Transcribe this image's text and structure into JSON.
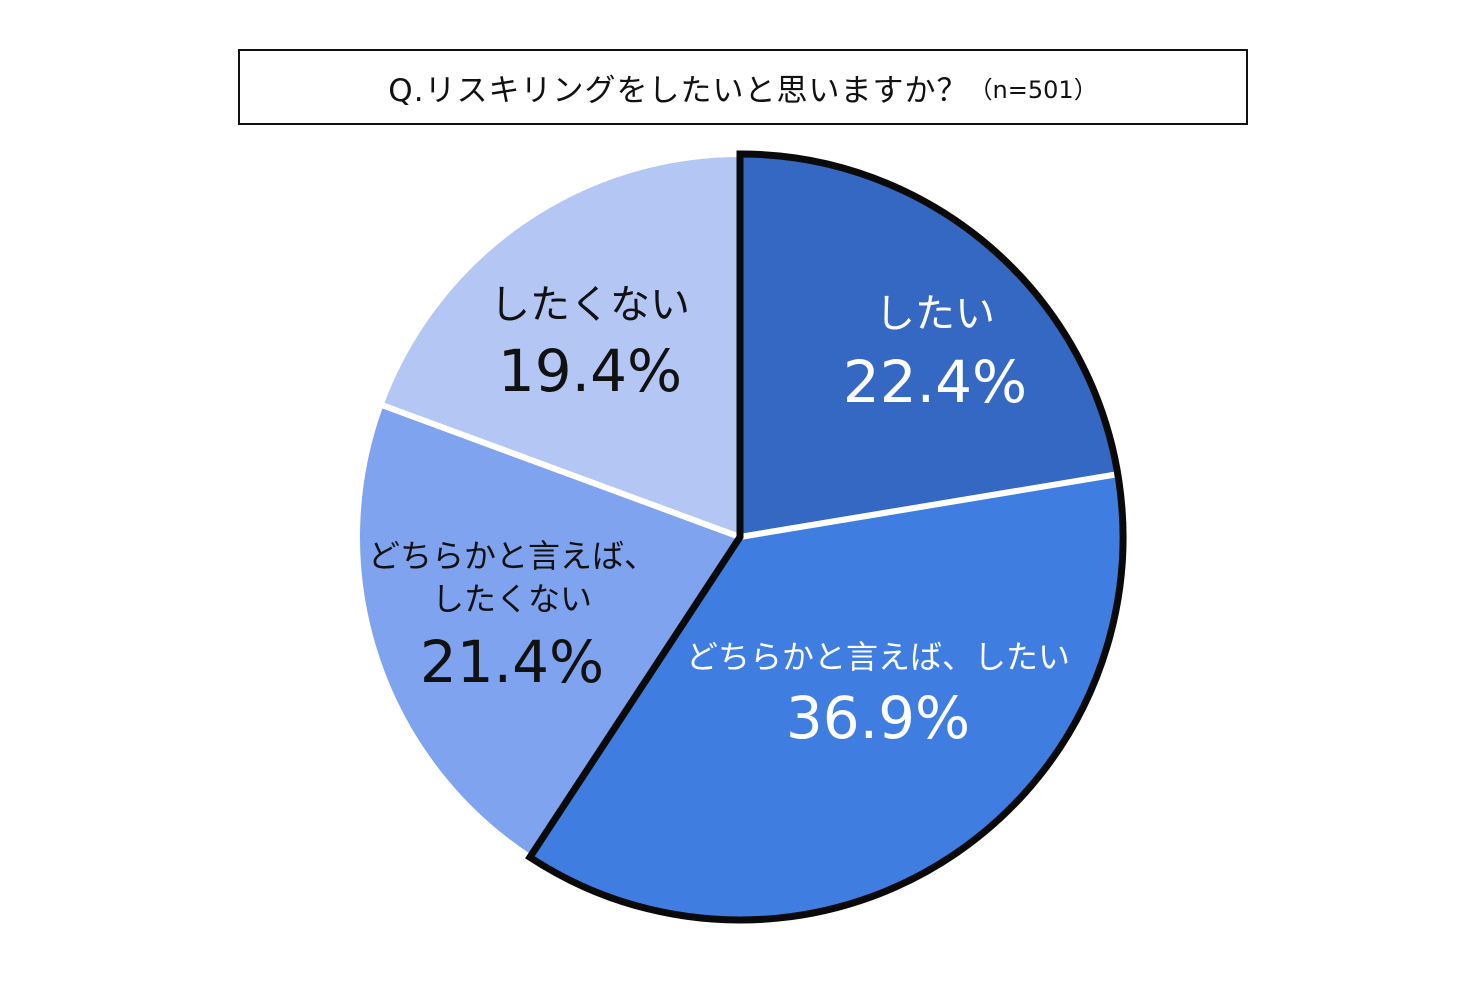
{
  "title": {
    "text": "Q.リスキリングをしたいと思いますか？",
    "n": "（n=501）"
  },
  "chart_data": {
    "type": "pie",
    "title": "Q.リスキリングをしたいと思いますか？（n=501）",
    "slices": [
      {
        "label_lines": [
          "したい"
        ],
        "value": 22.4,
        "value_label": "22.4%",
        "color": "#3468C2",
        "text_color": "#ffffff"
      },
      {
        "label_lines": [
          "どちらかと言えば、したい"
        ],
        "value": 36.9,
        "value_label": "36.9%",
        "color": "#3F7EE0",
        "text_color": "#ffffff"
      },
      {
        "label_lines": [
          "どちらかと言えば、",
          "したくない"
        ],
        "value": 21.4,
        "value_label": "21.4%",
        "color": "#7FA3EE",
        "text_color": "#111111"
      },
      {
        "label_lines": [
          "したくない"
        ],
        "value": 19.4,
        "value_label": "19.4%",
        "color": "#B4C6F4",
        "text_color": "#111111"
      }
    ],
    "highlighted_slices": [
      "したい",
      "どちらかと言えば、したい"
    ],
    "start_angle": "12 o'clock",
    "direction": "clockwise"
  }
}
